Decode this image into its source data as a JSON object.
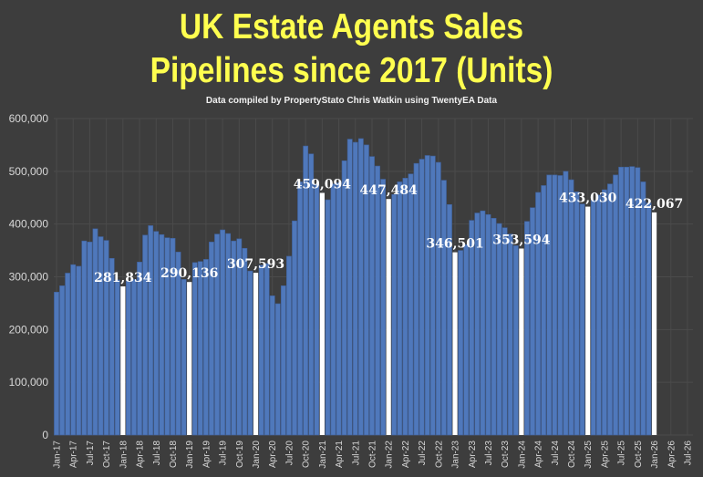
{
  "title_line1": "UK Estate Agents Sales",
  "title_line2": "Pipelines since 2017 (Units)",
  "subtitle": "Data compiled by PropertyStato Chris Watkin using TwentyEA Data",
  "colors": {
    "background": "#3d3d3d",
    "title": "#ffff4f",
    "bar": "#4f78bb",
    "highlight_bar": "#ffffff",
    "grid": "#4b4b4b"
  },
  "chart_data": {
    "type": "bar",
    "title": "UK Estate Agents Sales Pipelines since 2017 (Units)",
    "subtitle": "Data compiled by PropertyStato Chris Watkin using TwentyEA Data",
    "ylim": [
      0,
      600000
    ],
    "yticks": [
      0,
      100000,
      200000,
      300000,
      400000,
      500000,
      600000
    ],
    "ytick_labels": [
      "0",
      "100,000",
      "200,000",
      "300,000",
      "400,000",
      "500,000",
      "600,000"
    ],
    "grid": true,
    "xtick_labels": [
      "Jan-17",
      "Apr-17",
      "Jul-17",
      "Oct-17",
      "Jan-18",
      "Apr-18",
      "Jul-18",
      "Oct-18",
      "Jan-19",
      "Apr-19",
      "Jul-19",
      "Oct-19",
      "Jan-20",
      "Apr-20",
      "Jul-20",
      "Oct-20",
      "Jan-21",
      "Apr-21",
      "Jul-21",
      "Oct-21",
      "Jan-22",
      "Apr-22",
      "Jul-22",
      "Oct-22",
      "Jan-23",
      "Apr-23",
      "Jul-23",
      "Oct-23",
      "Jan-24",
      "Apr-24",
      "Jul-24",
      "Oct-24",
      "Jan-25",
      "Apr-25",
      "Jul-25",
      "Oct-25",
      "Jan-26",
      "Apr-26",
      "Jul-26"
    ],
    "start_month": "Jan-17",
    "values": [
      271000,
      283000,
      307000,
      323000,
      320000,
      368000,
      366000,
      391000,
      376000,
      369000,
      335000,
      294000,
      281834,
      292000,
      295000,
      328000,
      379000,
      397000,
      386000,
      380000,
      374000,
      373000,
      347000,
      295000,
      290136,
      327000,
      329000,
      333000,
      366000,
      381000,
      389000,
      382000,
      368000,
      372000,
      354000,
      311000,
      307593,
      322000,
      325000,
      264000,
      249000,
      283000,
      339000,
      406000,
      480000,
      548000,
      533000,
      475000,
      459094,
      446000,
      476000,
      478000,
      520000,
      561000,
      555000,
      562000,
      550000,
      528000,
      510000,
      485000,
      447484,
      456000,
      480000,
      487000,
      495000,
      515000,
      523000,
      530000,
      529000,
      517000,
      483000,
      437000,
      346501,
      350000,
      361000,
      407000,
      421000,
      425000,
      418000,
      411000,
      401000,
      393000,
      381000,
      359000,
      353594,
      405000,
      431000,
      460000,
      473000,
      493000,
      493000,
      492000,
      500000,
      484000,
      461000,
      438000,
      433030,
      445000,
      455000,
      465000,
      476000,
      493000,
      508000,
      508000,
      509000,
      507000,
      480000,
      440000,
      422067
    ],
    "highlighted": [
      {
        "month": "Jan-18",
        "value": 281834,
        "label": "281,834"
      },
      {
        "month": "Jan-19",
        "value": 290136,
        "label": "290,136"
      },
      {
        "month": "Jan-20",
        "value": 307593,
        "label": "307,593"
      },
      {
        "month": "Jan-21",
        "value": 459094,
        "label": "459,094"
      },
      {
        "month": "Jan-22",
        "value": 447484,
        "label": "447,484"
      },
      {
        "month": "Jan-23",
        "value": 346501,
        "label": "346,501"
      },
      {
        "month": "Jan-24",
        "value": 353594,
        "label": "353,594"
      },
      {
        "month": "Jan-25",
        "value": 433030,
        "label": "433,030"
      },
      {
        "month": "Jan-26",
        "value": 422067,
        "label": "422,067"
      }
    ]
  }
}
